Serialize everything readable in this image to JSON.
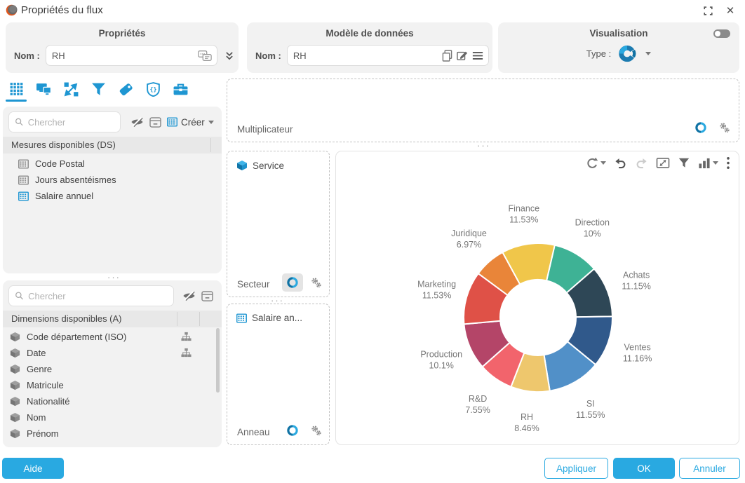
{
  "window": {
    "title": "Propriétés du flux"
  },
  "panels": {
    "properties": {
      "title": "Propriétés",
      "name_label": "Nom :",
      "name_value": "RH"
    },
    "data_model": {
      "title": "Modèle de données",
      "name_label": "Nom :",
      "name_value": "RH"
    },
    "visualization": {
      "title": "Visualisation",
      "type_label": "Type :",
      "type_icon": "donut-chart-icon"
    }
  },
  "sidebar": {
    "tabs": [
      {
        "icon": "data-grid-icon",
        "active": true
      },
      {
        "icon": "screens-icon",
        "active": false
      },
      {
        "icon": "interactions-icon",
        "active": false
      },
      {
        "icon": "filter-icon",
        "active": false
      },
      {
        "icon": "tag-icon",
        "active": false
      },
      {
        "icon": "css-shield-icon",
        "active": false
      },
      {
        "icon": "toolbox-icon",
        "active": false
      }
    ],
    "measures": {
      "search_placeholder": "Chercher",
      "hide_icon": "eye-off-icon",
      "card_icon": "card-icon",
      "create_label": "Créer",
      "create_icon": "abacus-icon",
      "header": "Mesures disponibles (DS)",
      "items": [
        {
          "label": "Code Postal",
          "icon": "abacus-icon",
          "active": false
        },
        {
          "label": "Jours absentéismes",
          "icon": "abacus-icon",
          "active": false
        },
        {
          "label": "Salaire annuel",
          "icon": "abacus-icon",
          "active": true
        }
      ]
    },
    "dimensions": {
      "search_placeholder": "Chercher",
      "hide_icon": "eye-off-icon",
      "card_icon": "card-icon",
      "header": "Dimensions disponibles (A)",
      "items": [
        {
          "label": "Code département (ISO)",
          "icon": "cube-icon",
          "hierarchy": true
        },
        {
          "label": "Date",
          "icon": "cube-icon",
          "hierarchy": true
        },
        {
          "label": "Genre",
          "icon": "cube-icon",
          "hierarchy": false
        },
        {
          "label": "Matricule",
          "icon": "cube-icon",
          "hierarchy": false
        },
        {
          "label": "Nationalité",
          "icon": "cube-icon",
          "hierarchy": false
        },
        {
          "label": "Nom",
          "icon": "cube-icon",
          "hierarchy": false
        },
        {
          "label": "Prénom",
          "icon": "cube-icon",
          "hierarchy": false
        }
      ]
    }
  },
  "zones": {
    "multiplier": {
      "label": "Multiplicateur",
      "ring_icon": "ring-icon",
      "settings_icon": "gears-icon"
    },
    "sector": {
      "drop_label": "Service",
      "drop_icon": "cube-icon",
      "label": "Secteur",
      "ring_icon": "ring-icon",
      "settings_icon": "gears-icon"
    },
    "ring": {
      "drop_label": "Salaire an...",
      "drop_icon": "abacus-icon",
      "label": "Anneau",
      "ring_icon": "ring-icon",
      "settings_icon": "gears-icon"
    }
  },
  "chart_toolbar": {
    "icons": [
      "refresh-icon",
      "undo-icon",
      "redo-icon",
      "resize-icon",
      "filter-icon",
      "chart-type-icon",
      "kebab-menu-icon"
    ]
  },
  "chart_data": {
    "type": "pie",
    "subtype": "donut",
    "categories": [
      "Direction",
      "Achats",
      "Ventes",
      "SI",
      "RH",
      "R&D",
      "Production",
      "Marketing",
      "Juridique",
      "Finance"
    ],
    "values": [
      10,
      11.15,
      11.16,
      11.55,
      8.46,
      7.55,
      10.1,
      11.53,
      6.97,
      11.53
    ],
    "value_labels": [
      "10%",
      "11.15%",
      "11.16%",
      "11.55%",
      "8.46%",
      "7.55%",
      "10.1%",
      "11.53%",
      "6.97%",
      "11.53%"
    ],
    "colors": [
      "#3eb295",
      "#2e4756",
      "#30598b",
      "#5190c8",
      "#eec76d",
      "#f2646c",
      "#b44568",
      "#df5147",
      "#e98539",
      "#f0c64a"
    ],
    "start_angle_deg": 13,
    "title": "",
    "legend": "none",
    "label_position": "outside"
  },
  "footer": {
    "help": "Aide",
    "apply": "Appliquer",
    "ok": "OK",
    "cancel": "Annuler"
  },
  "colors": {
    "accent": "#29a9e1",
    "icon_blue": "#1e96d2"
  }
}
